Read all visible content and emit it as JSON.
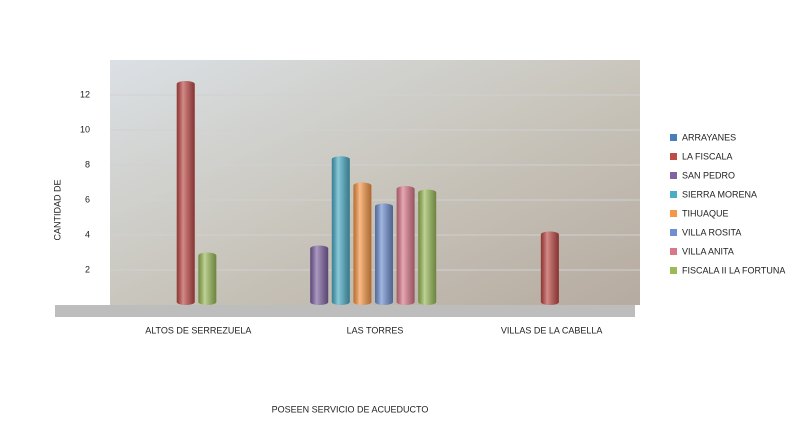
{
  "chart_data": {
    "type": "bar",
    "y_label": "CANTIDAD DE",
    "x_label": "POSEEN SERVICIO DE ACUEDUCTO",
    "categories": [
      "ALTOS DE SERREZUELA",
      "LAS TORRES",
      "VILLAS DE LA CABELLA"
    ],
    "series": [
      {
        "name": "ARRAYANES",
        "color": "#4a7ebb",
        "values": [
          null,
          null,
          null
        ]
      },
      {
        "name": "LA FISCALA",
        "color": "#be4b48",
        "values": [
          12.8,
          null,
          4.2
        ]
      },
      {
        "name": "SAN PEDRO",
        "color": "#7f63a2",
        "values": [
          null,
          3.4,
          null
        ]
      },
      {
        "name": "SIERRA MORENA",
        "color": "#4bacc6",
        "values": [
          null,
          8.5,
          null
        ]
      },
      {
        "name": "TIHUAQUE",
        "color": "#f79646",
        "values": [
          null,
          7,
          null
        ]
      },
      {
        "name": "VILLA ROSITA",
        "color": "#6f8fd0",
        "values": [
          null,
          5.8,
          null
        ]
      },
      {
        "name": "VILLA ANITA",
        "color": "#d9788a",
        "values": [
          null,
          6.8,
          null
        ]
      },
      {
        "name": "FISCALA II LA FORTUNA",
        "color": "#9bbb59",
        "values": [
          3,
          6.6,
          null
        ]
      }
    ],
    "ylim": [
      0,
      14
    ],
    "yticks": [
      2,
      4,
      6,
      8,
      10,
      12
    ],
    "grid": true
  }
}
